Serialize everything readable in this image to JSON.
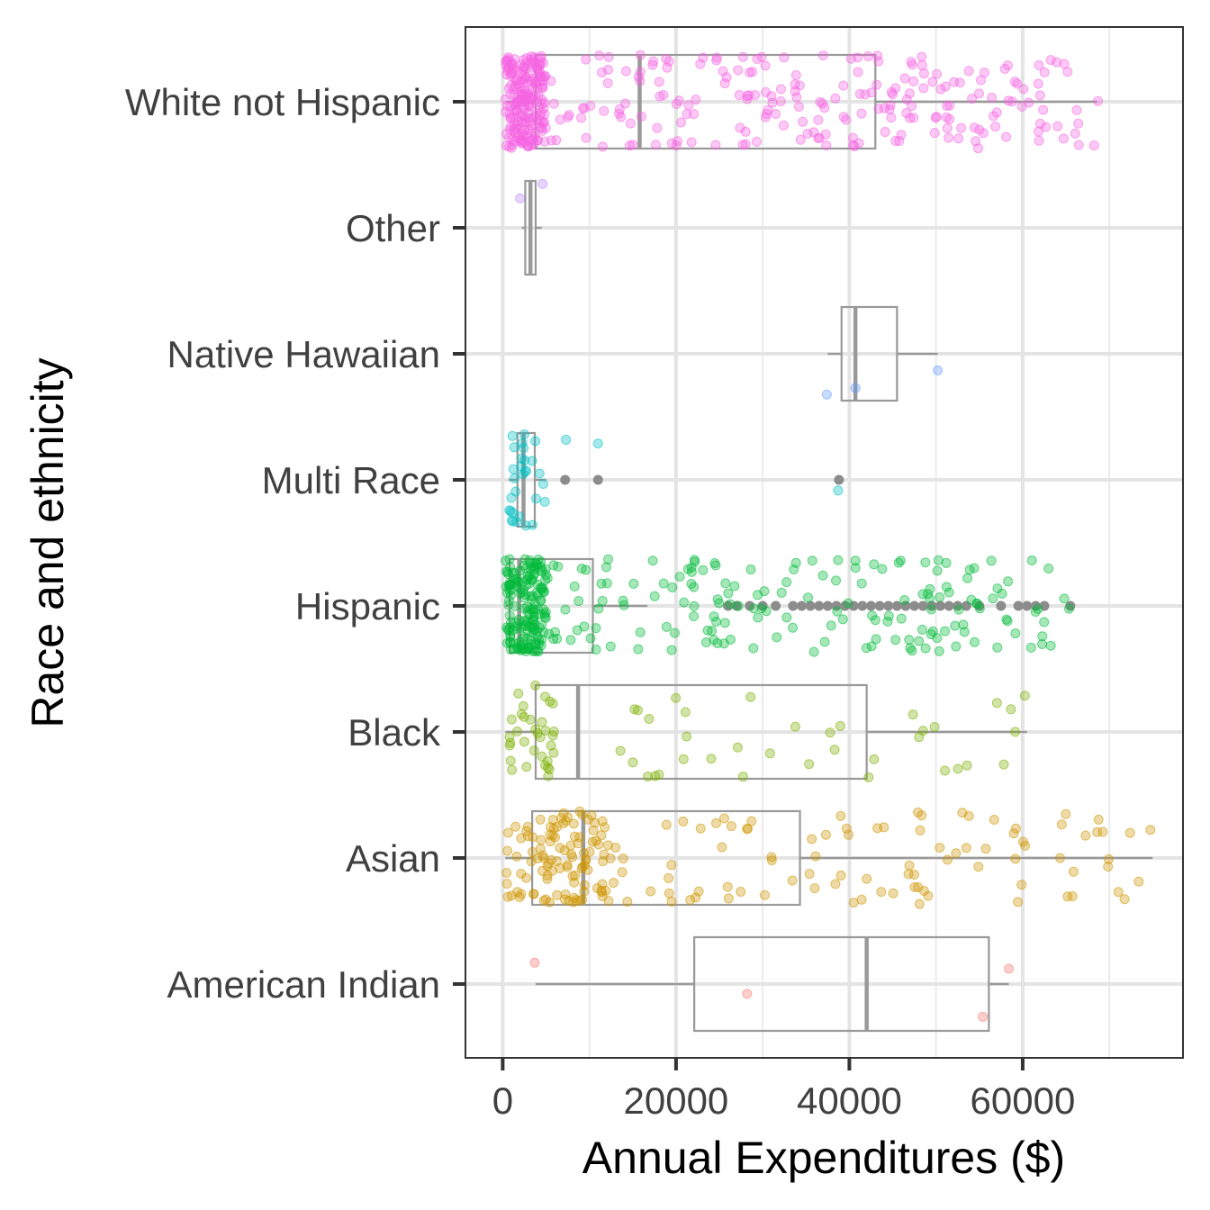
{
  "chart_data": {
    "type": "boxplot",
    "orientation": "horizontal",
    "xlabel": "Annual Expenditures ($)",
    "ylabel": "Race and ethnicity",
    "xlim": [
      -4300,
      78500
    ],
    "x_ticks": [
      0,
      20000,
      40000,
      60000
    ],
    "x_tick_labels": [
      "0",
      "20000",
      "40000",
      "60000"
    ],
    "grid": true,
    "legend": "none",
    "series": [
      {
        "name": "White not Hispanic",
        "color": "#f564e3",
        "min": 400,
        "q1": 3800,
        "median": 15800,
        "q3": 43000,
        "max": 68600,
        "outliers": [],
        "jitter": {
          "count": 420,
          "min": 300,
          "max": 69000,
          "dense_upto": 5000
        }
      },
      {
        "name": "Other",
        "color": "#b983ff",
        "min": 2200,
        "q1": 2600,
        "median": 3200,
        "q3": 3800,
        "max": 4500,
        "outliers": [],
        "jitter_points": [
          2000,
          4600
        ]
      },
      {
        "name": "Native Hawaiian",
        "color": "#619cff",
        "min": 37500,
        "q1": 39100,
        "median": 40700,
        "q3": 45500,
        "max": 50200,
        "outliers": [],
        "jitter_points": [
          37400,
          40700,
          50200
        ]
      },
      {
        "name": "Multi Race",
        "color": "#00bfc4",
        "min": 700,
        "q1": 1700,
        "median": 2400,
        "q3": 3700,
        "max": 5000,
        "outliers": [
          7200,
          11000,
          38800
        ],
        "jitter": {
          "count": 30,
          "min": 500,
          "max": 5000,
          "dense_upto": 4000
        },
        "jitter_points": [
          7300,
          11000,
          38700
        ]
      },
      {
        "name": "Hispanic",
        "color": "#00ba38",
        "min": 300,
        "q1": 800,
        "median": 1900,
        "q3": 10400,
        "max": 16700,
        "outliers": [
          26000,
          27000,
          28500,
          30000,
          31500,
          33500,
          34500,
          35500,
          36500,
          37500,
          38500,
          39500,
          40500,
          41500,
          42500,
          43500,
          44500,
          45500,
          46500,
          47500,
          48500,
          49500,
          50500,
          51500,
          52500,
          53500,
          55000,
          57500,
          59500,
          60500,
          61500,
          62500,
          65500
        ],
        "jitter": {
          "count": 330,
          "min": 300,
          "max": 65500,
          "dense_upto": 5000
        }
      },
      {
        "name": "Black",
        "color": "#7cae00",
        "min": 300,
        "q1": 3800,
        "median": 8700,
        "q3": 42000,
        "max": 60500,
        "outliers": [],
        "jitter": {
          "count": 70,
          "min": 300,
          "max": 60500,
          "dense_upto": 6000
        }
      },
      {
        "name": "Asian",
        "color": "#cd9600",
        "min": 300,
        "q1": 3400,
        "median": 9300,
        "q3": 34300,
        "max": 75000,
        "outliers": [],
        "jitter": {
          "count": 200,
          "min": 300,
          "max": 75000,
          "dense_upto": 12000
        }
      },
      {
        "name": "American Indian",
        "color": "#f8766d",
        "min": 3800,
        "q1": 22100,
        "median": 42000,
        "q3": 56100,
        "max": 58400,
        "outliers": [],
        "jitter_points": [
          3700,
          28200,
          55400,
          58400
        ]
      }
    ]
  }
}
